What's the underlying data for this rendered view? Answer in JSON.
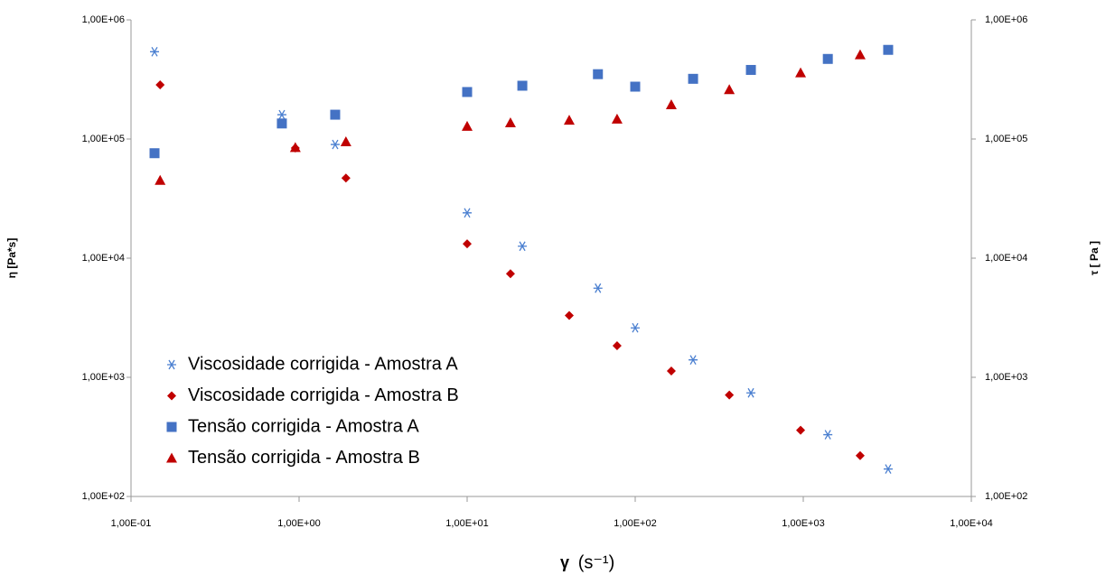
{
  "chart_data": {
    "type": "scatter",
    "x_label": "γ",
    "x_unit": "(s⁻¹)",
    "y_label": "η  [Pa*s]",
    "y2_label": "τ [ Pa ]",
    "log_x": true,
    "log_y": true,
    "grid": false,
    "legend": "lower-left",
    "xlim": [
      0.1,
      10000
    ],
    "xticks": [
      {
        "value": 0.1,
        "label": "1,00E-01"
      },
      {
        "value": 1,
        "label": "1,00E+00"
      },
      {
        "value": 10,
        "label": "1,00E+01"
      },
      {
        "value": 100,
        "label": "1,00E+02"
      },
      {
        "value": 1000,
        "label": "1,00E+03"
      },
      {
        "value": 10000,
        "label": "1,00E+04"
      }
    ],
    "ylim": [
      100,
      1000000
    ],
    "yticks": [
      {
        "value": 100,
        "label": "1,00E+02"
      },
      {
        "value": 1000,
        "label": "1,00E+03"
      },
      {
        "value": 10000,
        "label": "1,00E+04"
      },
      {
        "value": 100000,
        "label": "1,00E+05"
      },
      {
        "value": 1000000,
        "label": "1,00E+06"
      }
    ],
    "y2lim": [
      100,
      1000000
    ],
    "y2ticks": [
      {
        "value": 100,
        "label": "1,00E+02"
      },
      {
        "value": 1000,
        "label": "1,00E+03"
      },
      {
        "value": 10000,
        "label": "1,00E+04"
      },
      {
        "value": 100000,
        "label": "1,00E+05"
      },
      {
        "value": 1000000,
        "label": "1,00E+06"
      }
    ],
    "series": [
      {
        "name": "Viscosidade corrigida - Amostra A",
        "color": "#4a7fd0",
        "marker": "asterisk",
        "x": [
          0.138,
          0.79,
          1.64,
          10,
          21.3,
          60,
          100,
          221,
          488,
          1400,
          3200
        ],
        "values": [
          540000,
          160000,
          90000,
          24000,
          12600,
          5600,
          2600,
          1400,
          740,
          330,
          170
        ]
      },
      {
        "name": "Viscosidade corrigida - Amostra B",
        "color": "#c00000",
        "marker": "diamond",
        "x": [
          0.149,
          0.95,
          1.9,
          10,
          18.1,
          40.5,
          78,
          164,
          363,
          964,
          2180
        ],
        "values": [
          285000,
          84000,
          47000,
          13200,
          7400,
          3300,
          1840,
          1130,
          710,
          360,
          220
        ]
      },
      {
        "name": "Tensão corrigida - Amostra A",
        "color": "#4472c4",
        "marker": "square",
        "axis": "y2",
        "x": [
          0.138,
          0.79,
          1.64,
          10,
          21.3,
          60,
          100,
          221,
          488,
          1400,
          3200
        ],
        "values": [
          76000,
          135000,
          160000,
          248000,
          280000,
          350000,
          275000,
          320000,
          380000,
          470000,
          560000
        ]
      },
      {
        "name": "Tensão corrigida - Amostra B",
        "color": "#c00000",
        "marker": "triangle",
        "axis": "y2",
        "x": [
          0.149,
          0.95,
          1.9,
          10,
          18.1,
          40.5,
          78,
          164,
          363,
          964,
          2180
        ],
        "values": [
          45000,
          85000,
          95000,
          128000,
          137000,
          144000,
          147000,
          194000,
          260000,
          360000,
          510000
        ]
      }
    ]
  }
}
